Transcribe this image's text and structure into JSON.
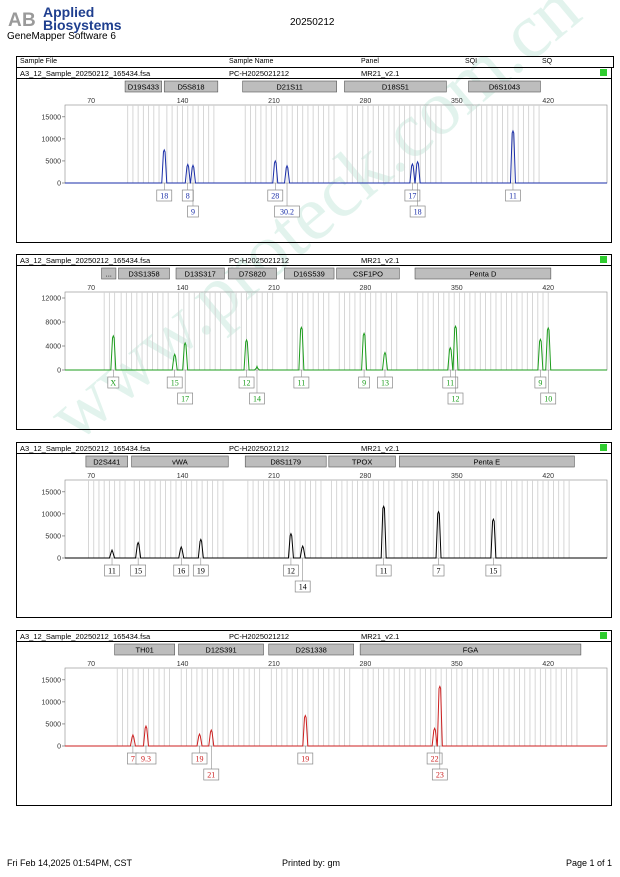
{
  "header": {
    "brand_line1": "Applied",
    "brand_line2": "Biosystems",
    "app": "GeneMapper Software 6",
    "date": "20250212",
    "cols": [
      "Sample File",
      "Sample Name",
      "Panel",
      "SQI",
      "SQ"
    ]
  },
  "sample": {
    "file": "A3_12_Sample_20250212_165434.fsa",
    "name": "PC-H2025021212",
    "panel": "MR21_v2.1"
  },
  "watermark": "www.proteck.com.cn",
  "footer": {
    "left": "Fri Feb 14,2025 01:54PM, CST",
    "center": "Printed by: gm",
    "right": "Page 1 of 1"
  },
  "colors": {
    "blue": "#1a2ea8",
    "green": "#1c9c1c",
    "black": "#000000",
    "red": "#cc1f1f",
    "status": "#2fcc2f"
  },
  "chart_data": [
    {
      "type": "line",
      "color": "blue",
      "xticks": [
        70,
        140,
        210,
        280,
        350,
        420
      ],
      "yticks": [
        0,
        5000,
        10000,
        15000
      ],
      "ylim": [
        0,
        17000
      ],
      "markers": [
        {
          "name": "D19S433",
          "s": 96,
          "e": 124
        },
        {
          "name": "D5S818",
          "s": 126,
          "e": 167
        },
        {
          "name": "D21S11",
          "s": 186,
          "e": 258
        },
        {
          "name": "D18S51",
          "s": 264,
          "e": 342
        },
        {
          "name": "D6S1043",
          "s": 359,
          "e": 414
        }
      ],
      "peaks": [
        {
          "x": 126,
          "h": 7500
        },
        {
          "x": 144,
          "h": 4200
        },
        {
          "x": 148,
          "h": 4000
        },
        {
          "x": 211,
          "h": 5000
        },
        {
          "x": 220,
          "h": 3900
        },
        {
          "x": 316,
          "h": 4300
        },
        {
          "x": 320,
          "h": 4800
        },
        {
          "x": 393,
          "h": 11800
        }
      ],
      "alleles": [
        {
          "x": 126,
          "l": "18",
          "r": 1
        },
        {
          "x": 144,
          "l": "8",
          "r": 1
        },
        {
          "x": 148,
          "l": "9",
          "r": 2
        },
        {
          "x": 211,
          "l": "28",
          "r": 1
        },
        {
          "x": 220,
          "l": "30.2",
          "r": 2
        },
        {
          "x": 316,
          "l": "17",
          "r": 1
        },
        {
          "x": 320,
          "l": "18",
          "r": 2
        },
        {
          "x": 393,
          "l": "11",
          "r": 1
        }
      ]
    },
    {
      "type": "line",
      "color": "green",
      "xticks": [
        70,
        140,
        210,
        280,
        350,
        420
      ],
      "yticks": [
        0,
        4000,
        8000,
        12000
      ],
      "ylim": [
        0,
        12500
      ],
      "markers": [
        {
          "name": "...",
          "s": 78,
          "e": 89
        },
        {
          "name": "D3S1358",
          "s": 91,
          "e": 130
        },
        {
          "name": "D13S317",
          "s": 135,
          "e": 172
        },
        {
          "name": "D7S820",
          "s": 175,
          "e": 212
        },
        {
          "name": "D16S539",
          "s": 218,
          "e": 256
        },
        {
          "name": "CSF1PO",
          "s": 258,
          "e": 306
        },
        {
          "name": "Penta D",
          "s": 318,
          "e": 422
        }
      ],
      "peaks": [
        {
          "x": 87,
          "h": 5700
        },
        {
          "x": 134,
          "h": 2600
        },
        {
          "x": 142,
          "h": 4500
        },
        {
          "x": 189,
          "h": 5000
        },
        {
          "x": 197,
          "h": 600
        },
        {
          "x": 231,
          "h": 7100
        },
        {
          "x": 279,
          "h": 6100
        },
        {
          "x": 295,
          "h": 2900
        },
        {
          "x": 345,
          "h": 3700
        },
        {
          "x": 349,
          "h": 7300
        },
        {
          "x": 414,
          "h": 5100
        },
        {
          "x": 420,
          "h": 7000
        }
      ],
      "alleles": [
        {
          "x": 87,
          "l": "X",
          "r": 1
        },
        {
          "x": 134,
          "l": "15",
          "r": 1
        },
        {
          "x": 142,
          "l": "17",
          "r": 2
        },
        {
          "x": 189,
          "l": "12",
          "r": 1
        },
        {
          "x": 197,
          "l": "14",
          "r": 2
        },
        {
          "x": 231,
          "l": "11",
          "r": 1
        },
        {
          "x": 279,
          "l": "9",
          "r": 1
        },
        {
          "x": 295,
          "l": "13",
          "r": 1
        },
        {
          "x": 345,
          "l": "11",
          "r": 1
        },
        {
          "x": 349,
          "l": "12",
          "r": 2
        },
        {
          "x": 414,
          "l": "9",
          "r": 1
        },
        {
          "x": 420,
          "l": "10",
          "r": 2
        }
      ]
    },
    {
      "type": "line",
      "color": "black",
      "xticks": [
        70,
        140,
        210,
        280,
        350,
        420
      ],
      "yticks": [
        0,
        5000,
        10000,
        15000
      ],
      "ylim": [
        0,
        17000
      ],
      "markers": [
        {
          "name": "D2S441",
          "s": 66,
          "e": 98
        },
        {
          "name": "vWA",
          "s": 101,
          "e": 175
        },
        {
          "name": "D8S1179",
          "s": 188,
          "e": 250
        },
        {
          "name": "TPOX",
          "s": 252,
          "e": 303
        },
        {
          "name": "Penta E",
          "s": 306,
          "e": 440
        }
      ],
      "peaks": [
        {
          "x": 86,
          "h": 1800
        },
        {
          "x": 106,
          "h": 3500
        },
        {
          "x": 139,
          "h": 2500
        },
        {
          "x": 154,
          "h": 4200
        },
        {
          "x": 223,
          "h": 5500
        },
        {
          "x": 232,
          "h": 2700
        },
        {
          "x": 294,
          "h": 11700
        },
        {
          "x": 336,
          "h": 10500
        },
        {
          "x": 378,
          "h": 8800
        }
      ],
      "alleles": [
        {
          "x": 86,
          "l": "11",
          "r": 1
        },
        {
          "x": 106,
          "l": "15",
          "r": 1
        },
        {
          "x": 139,
          "l": "16",
          "r": 1
        },
        {
          "x": 154,
          "l": "19",
          "r": 1
        },
        {
          "x": 223,
          "l": "12",
          "r": 1
        },
        {
          "x": 232,
          "l": "14",
          "r": 2
        },
        {
          "x": 294,
          "l": "11",
          "r": 1
        },
        {
          "x": 336,
          "l": "7",
          "r": 1
        },
        {
          "x": 378,
          "l": "15",
          "r": 1
        }
      ]
    },
    {
      "type": "line",
      "color": "red",
      "xticks": [
        70,
        140,
        210,
        280,
        350,
        420
      ],
      "yticks": [
        0,
        5000,
        10000,
        15000
      ],
      "ylim": [
        0,
        17000
      ],
      "markers": [
        {
          "name": "TH01",
          "s": 88,
          "e": 134
        },
        {
          "name": "D12S391",
          "s": 137,
          "e": 202
        },
        {
          "name": "D2S1338",
          "s": 206,
          "e": 271
        },
        {
          "name": "FGA",
          "s": 276,
          "e": 445
        }
      ],
      "peaks": [
        {
          "x": 102,
          "h": 2500
        },
        {
          "x": 112,
          "h": 4500
        },
        {
          "x": 153,
          "h": 2700
        },
        {
          "x": 162,
          "h": 3600
        },
        {
          "x": 234,
          "h": 6900
        },
        {
          "x": 333,
          "h": 4000
        },
        {
          "x": 337,
          "h": 13500
        }
      ],
      "alleles": [
        {
          "x": 102,
          "l": "7",
          "r": 1
        },
        {
          "x": 112,
          "l": "9.3",
          "r": 1
        },
        {
          "x": 153,
          "l": "19",
          "r": 1
        },
        {
          "x": 162,
          "l": "21",
          "r": 2
        },
        {
          "x": 234,
          "l": "19",
          "r": 1
        },
        {
          "x": 333,
          "l": "22",
          "r": 1
        },
        {
          "x": 337,
          "l": "23",
          "r": 2
        }
      ]
    }
  ]
}
